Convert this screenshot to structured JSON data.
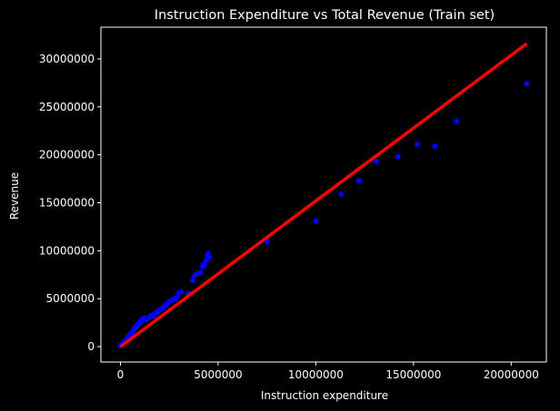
{
  "chart_data": {
    "type": "scatter",
    "title": "Instruction Expenditure vs Total Revenue (Train set)",
    "xlabel": "Instruction expenditure",
    "ylabel": "Revenue",
    "xlim": [
      -1000000,
      21800000
    ],
    "ylim": [
      -1600000,
      33300000
    ],
    "xticks": [
      0,
      5000000,
      10000000,
      15000000,
      20000000
    ],
    "yticks": [
      0,
      5000000,
      10000000,
      15000000,
      20000000,
      25000000,
      30000000
    ],
    "xtick_labels": [
      "0",
      "5000000",
      "10000000",
      "15000000",
      "20000000"
    ],
    "ytick_labels": [
      "0",
      "5000000",
      "10000000",
      "15000000",
      "20000000",
      "25000000",
      "30000000"
    ],
    "grid": false,
    "colors": {
      "background": "#000000",
      "points": "#0000ff",
      "fit_line": "#ff0000",
      "axes": "#ffffff"
    },
    "series": [
      {
        "kind": "points",
        "points": [
          [
            20000,
            100000
          ],
          [
            60000,
            200000
          ],
          [
            100000,
            300000
          ],
          [
            150000,
            400000
          ],
          [
            200000,
            500000
          ],
          [
            250000,
            600000
          ],
          [
            300000,
            750000
          ],
          [
            350000,
            850000
          ],
          [
            400000,
            1000000
          ],
          [
            450000,
            1100000
          ],
          [
            500000,
            1250000
          ],
          [
            550000,
            1400000
          ],
          [
            600000,
            1500000
          ],
          [
            650000,
            1650000
          ],
          [
            700000,
            1800000
          ],
          [
            750000,
            1950000
          ],
          [
            800000,
            2100000
          ],
          [
            850000,
            2200000
          ],
          [
            900000,
            2350000
          ],
          [
            950000,
            2450000
          ],
          [
            1000000,
            2600000
          ],
          [
            1050000,
            2550000
          ],
          [
            1100000,
            2750000
          ],
          [
            1150000,
            2900000
          ],
          [
            1200000,
            3000000
          ],
          [
            1300000,
            2800000
          ],
          [
            1400000,
            2950000
          ],
          [
            1500000,
            3100000
          ],
          [
            1600000,
            3300000
          ],
          [
            1700000,
            3200000
          ],
          [
            1800000,
            3500000
          ],
          [
            1900000,
            3600000
          ],
          [
            2000000,
            3800000
          ],
          [
            2100000,
            3900000
          ],
          [
            2200000,
            4100000
          ],
          [
            2300000,
            4300000
          ],
          [
            2400000,
            4500000
          ],
          [
            2500000,
            4700000
          ],
          [
            2600000,
            4800000
          ],
          [
            2700000,
            4900000
          ],
          [
            2800000,
            5000000
          ],
          [
            2900000,
            5200000
          ],
          [
            3000000,
            5600000
          ],
          [
            3100000,
            5700000
          ],
          [
            3500000,
            5500000
          ],
          [
            3700000,
            6900000
          ],
          [
            3800000,
            7400000
          ],
          [
            3900000,
            7600000
          ],
          [
            4100000,
            7700000
          ],
          [
            4200000,
            8300000
          ],
          [
            4250000,
            8600000
          ],
          [
            4300000,
            8500000
          ],
          [
            4400000,
            9000000
          ],
          [
            4450000,
            9500000
          ],
          [
            4500000,
            9700000
          ],
          [
            4550000,
            9300000
          ],
          [
            7500000,
            10900000
          ],
          [
            10000000,
            13100000
          ],
          [
            11300000,
            15900000
          ],
          [
            12200000,
            17300000
          ],
          [
            13100000,
            19300000
          ],
          [
            14200000,
            19800000
          ],
          [
            15200000,
            21100000
          ],
          [
            16100000,
            20900000
          ],
          [
            17200000,
            23500000
          ],
          [
            20800000,
            27400000
          ]
        ]
      },
      {
        "kind": "fit_line",
        "points": [
          [
            0,
            0
          ],
          [
            20800000,
            31600000
          ]
        ]
      }
    ]
  }
}
